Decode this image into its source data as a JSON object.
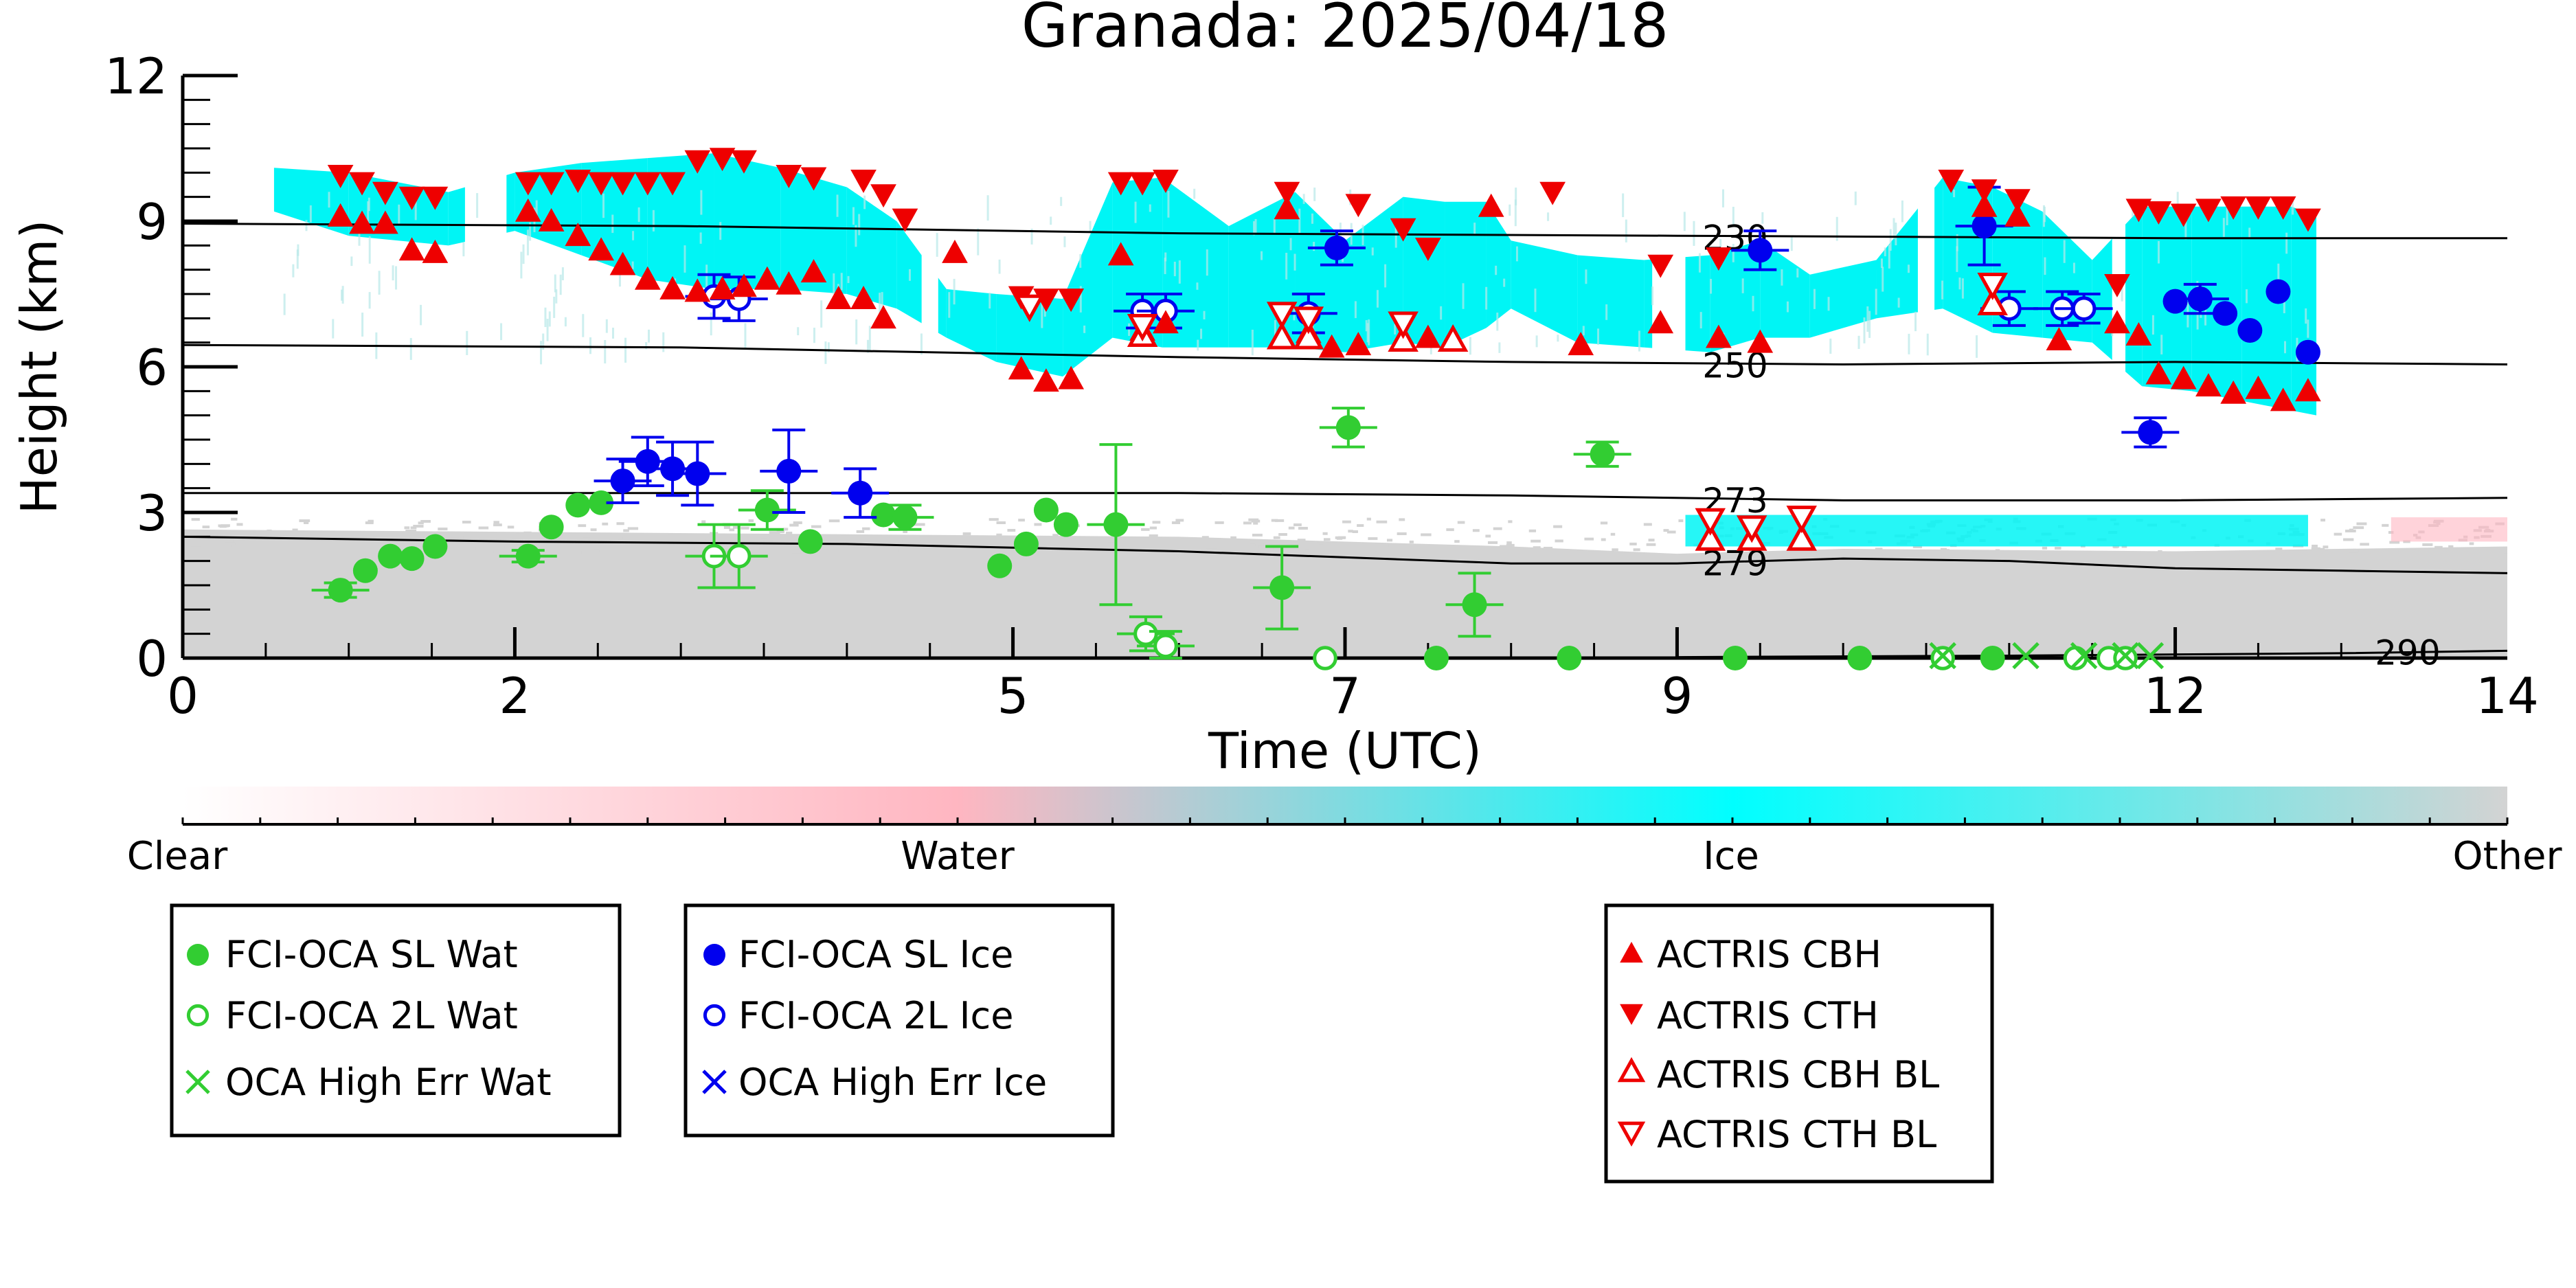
{
  "chart_data": {
    "type": "scatter",
    "title": "Granada: 2025/04/18",
    "xlabel": "Time (UTC)",
    "ylabel": "Height (km)",
    "xlim": [
      0,
      14
    ],
    "ylim": [
      0,
      12
    ],
    "xticks": [
      {
        "v": 0,
        "label": "0"
      },
      {
        "v": 2,
        "label": "2"
      },
      {
        "v": 5,
        "label": "5"
      },
      {
        "v": 7,
        "label": "7"
      },
      {
        "v": 9,
        "label": "9"
      },
      {
        "v": 12,
        "label": "12"
      },
      {
        "v": 14,
        "label": "14"
      }
    ],
    "yticks": [
      {
        "v": 0,
        "label": "0"
      },
      {
        "v": 3,
        "label": "3"
      },
      {
        "v": 6,
        "label": "6"
      },
      {
        "v": 9,
        "label": "9"
      },
      {
        "v": 12,
        "label": "12"
      }
    ],
    "colorbar": {
      "labels": [
        "Clear",
        "Water",
        "Ice",
        "Other"
      ],
      "colors": [
        "#ffffff",
        "#ffb6c1",
        "#00ffff",
        "#d3d3d3"
      ]
    },
    "colors": {
      "water": "#32cd32",
      "ice": "#0000ee",
      "actris": "#ee0000",
      "ice_mask": "#00f5f5",
      "other_mask": "#d3d3d3",
      "water_mask": "#ffb6c1"
    },
    "isotherms": [
      {
        "label": "230",
        "points": [
          [
            0,
            8.95
          ],
          [
            3,
            8.9
          ],
          [
            6,
            8.75
          ],
          [
            9,
            8.7
          ],
          [
            12,
            8.65
          ],
          [
            14,
            8.65
          ]
        ]
      },
      {
        "label": "250",
        "points": [
          [
            0,
            6.45
          ],
          [
            3,
            6.4
          ],
          [
            6,
            6.2
          ],
          [
            8,
            6.1
          ],
          [
            10,
            6.05
          ],
          [
            12,
            6.1
          ],
          [
            14,
            6.05
          ]
        ]
      },
      {
        "label": "273",
        "points": [
          [
            0,
            3.4
          ],
          [
            3,
            3.4
          ],
          [
            6,
            3.4
          ],
          [
            8,
            3.35
          ],
          [
            10,
            3.25
          ],
          [
            12,
            3.25
          ],
          [
            14,
            3.3
          ]
        ]
      },
      {
        "label": "279",
        "points": [
          [
            0,
            2.5
          ],
          [
            2,
            2.4
          ],
          [
            4,
            2.35
          ],
          [
            6,
            2.2
          ],
          [
            8,
            1.95
          ],
          [
            9,
            1.95
          ],
          [
            10,
            2.05
          ],
          [
            11,
            2.0
          ],
          [
            12,
            1.85
          ],
          [
            13,
            1.8
          ],
          [
            14,
            1.75
          ]
        ]
      },
      {
        "label": "290",
        "points": [
          [
            9,
            0.02
          ],
          [
            11,
            0.05
          ],
          [
            13,
            0.1
          ],
          [
            14,
            0.15
          ]
        ]
      }
    ],
    "series": [
      {
        "name": "FCI-OCA SL Wat",
        "marker": "filled-circle",
        "color": "water",
        "points": [
          {
            "x": 0.95,
            "y": 1.4,
            "err": 0.15
          },
          {
            "x": 1.1,
            "y": 1.8
          },
          {
            "x": 1.25,
            "y": 2.1
          },
          {
            "x": 1.38,
            "y": 2.05
          },
          {
            "x": 1.52,
            "y": 2.3
          },
          {
            "x": 2.08,
            "y": 2.1,
            "err": 0.12
          },
          {
            "x": 2.22,
            "y": 2.7
          },
          {
            "x": 2.38,
            "y": 3.15
          },
          {
            "x": 2.52,
            "y": 3.2
          },
          {
            "x": 3.52,
            "y": 3.05,
            "err": 0.4
          },
          {
            "x": 3.78,
            "y": 2.4
          },
          {
            "x": 4.22,
            "y": 2.95
          },
          {
            "x": 4.35,
            "y": 2.9,
            "err": 0.25
          },
          {
            "x": 4.92,
            "y": 1.9
          },
          {
            "x": 5.08,
            "y": 2.35
          },
          {
            "x": 5.2,
            "y": 3.05
          },
          {
            "x": 5.32,
            "y": 2.75
          },
          {
            "x": 5.62,
            "y": 2.75,
            "err": 1.65
          },
          {
            "x": 6.62,
            "y": 1.45,
            "err": 0.85
          },
          {
            "x": 7.02,
            "y": 4.75,
            "err": 0.4
          },
          {
            "x": 7.55,
            "y": 0.0
          },
          {
            "x": 7.78,
            "y": 1.1,
            "err": 0.65
          },
          {
            "x": 8.35,
            "y": 0.0
          },
          {
            "x": 8.55,
            "y": 4.2,
            "err": 0.25
          },
          {
            "x": 9.35,
            "y": 0.0
          },
          {
            "x": 10.1,
            "y": 0.0
          },
          {
            "x": 10.9,
            "y": 0.0
          }
        ]
      },
      {
        "name": "FCI-OCA 2L Wat",
        "marker": "open-circle",
        "color": "water",
        "points": [
          {
            "x": 3.2,
            "y": 2.1,
            "err": 0.65
          },
          {
            "x": 3.35,
            "y": 2.1,
            "err": 0.65
          },
          {
            "x": 5.8,
            "y": 0.5,
            "err": 0.35
          },
          {
            "x": 5.92,
            "y": 0.25,
            "err": 0.3
          },
          {
            "x": 6.88,
            "y": 0.0
          },
          {
            "x": 10.6,
            "y": 0.0
          },
          {
            "x": 11.4,
            "y": 0.0
          },
          {
            "x": 11.6,
            "y": 0.0
          },
          {
            "x": 11.7,
            "y": 0.0
          }
        ]
      },
      {
        "name": "OCA High Err Wat",
        "marker": "x",
        "color": "water",
        "points": [
          {
            "x": 10.6,
            "y": 0.05
          },
          {
            "x": 11.1,
            "y": 0.05
          },
          {
            "x": 11.45,
            "y": 0.05
          },
          {
            "x": 11.7,
            "y": 0.05
          },
          {
            "x": 11.85,
            "y": 0.05
          }
        ]
      },
      {
        "name": "FCI-OCA SL Ice",
        "marker": "filled-circle",
        "color": "ice",
        "points": [
          {
            "x": 2.65,
            "y": 3.65,
            "err": 0.45
          },
          {
            "x": 2.8,
            "y": 4.05,
            "err": 0.5
          },
          {
            "x": 2.95,
            "y": 3.9,
            "err": 0.55
          },
          {
            "x": 3.1,
            "y": 3.8,
            "err": 0.65
          },
          {
            "x": 3.65,
            "y": 3.85,
            "err": 0.85
          },
          {
            "x": 4.08,
            "y": 3.4,
            "err": 0.5
          },
          {
            "x": 6.95,
            "y": 8.45,
            "err": 0.35
          },
          {
            "x": 9.5,
            "y": 8.4,
            "err": 0.4
          },
          {
            "x": 10.85,
            "y": 8.9,
            "err": 0.8
          },
          {
            "x": 11.85,
            "y": 4.65,
            "err": 0.3
          },
          {
            "x": 12.0,
            "y": 7.35
          },
          {
            "x": 12.15,
            "y": 7.4,
            "err": 0.3
          },
          {
            "x": 12.3,
            "y": 7.1
          },
          {
            "x": 12.45,
            "y": 6.75
          },
          {
            "x": 12.62,
            "y": 7.55
          },
          {
            "x": 12.8,
            "y": 6.3
          }
        ]
      },
      {
        "name": "FCI-OCA 2L Ice",
        "marker": "open-circle",
        "color": "ice",
        "points": [
          {
            "x": 3.2,
            "y": 7.45,
            "err": 0.45
          },
          {
            "x": 3.35,
            "y": 7.4,
            "err": 0.45
          },
          {
            "x": 5.78,
            "y": 7.15,
            "err": 0.35
          },
          {
            "x": 5.92,
            "y": 7.15,
            "err": 0.35
          },
          {
            "x": 6.78,
            "y": 7.1,
            "err": 0.4
          },
          {
            "x": 11.0,
            "y": 7.2,
            "err": 0.35
          },
          {
            "x": 11.32,
            "y": 7.2,
            "err": 0.35
          },
          {
            "x": 11.45,
            "y": 7.2,
            "err": 0.3
          }
        ]
      },
      {
        "name": "OCA High Err Ice",
        "marker": "x",
        "color": "ice",
        "points": []
      },
      {
        "name": "ACTRIS CBH",
        "marker": "filled-triangle-up",
        "color": "actris",
        "points": [
          {
            "x": 0.95,
            "y": 9.1
          },
          {
            "x": 1.08,
            "y": 8.95
          },
          {
            "x": 1.22,
            "y": 8.95
          },
          {
            "x": 1.38,
            "y": 8.4
          },
          {
            "x": 1.52,
            "y": 8.35
          },
          {
            "x": 2.08,
            "y": 9.2
          },
          {
            "x": 2.22,
            "y": 9.0
          },
          {
            "x": 2.38,
            "y": 8.7
          },
          {
            "x": 2.52,
            "y": 8.4
          },
          {
            "x": 2.65,
            "y": 8.1
          },
          {
            "x": 2.8,
            "y": 7.8
          },
          {
            "x": 2.95,
            "y": 7.6
          },
          {
            "x": 3.1,
            "y": 7.55
          },
          {
            "x": 3.25,
            "y": 7.6
          },
          {
            "x": 3.38,
            "y": 7.65
          },
          {
            "x": 3.52,
            "y": 7.8
          },
          {
            "x": 3.65,
            "y": 7.7
          },
          {
            "x": 3.8,
            "y": 7.95
          },
          {
            "x": 3.95,
            "y": 7.4
          },
          {
            "x": 4.1,
            "y": 7.4
          },
          {
            "x": 4.22,
            "y": 7.0
          },
          {
            "x": 4.65,
            "y": 8.35
          },
          {
            "x": 5.05,
            "y": 5.95
          },
          {
            "x": 5.2,
            "y": 5.7
          },
          {
            "x": 5.35,
            "y": 5.75
          },
          {
            "x": 5.65,
            "y": 8.3
          },
          {
            "x": 5.78,
            "y": 6.75
          },
          {
            "x": 5.92,
            "y": 6.9
          },
          {
            "x": 6.65,
            "y": 9.25
          },
          {
            "x": 6.78,
            "y": 6.7
          },
          {
            "x": 6.92,
            "y": 6.4
          },
          {
            "x": 7.08,
            "y": 6.45
          },
          {
            "x": 7.35,
            "y": 6.6
          },
          {
            "x": 7.5,
            "y": 6.6
          },
          {
            "x": 7.88,
            "y": 9.3
          },
          {
            "x": 8.42,
            "y": 6.45
          },
          {
            "x": 8.9,
            "y": 6.9
          },
          {
            "x": 9.25,
            "y": 6.6
          },
          {
            "x": 9.5,
            "y": 6.5
          },
          {
            "x": 10.85,
            "y": 9.3
          },
          {
            "x": 11.05,
            "y": 9.1
          },
          {
            "x": 11.3,
            "y": 6.55
          },
          {
            "x": 11.65,
            "y": 6.9
          },
          {
            "x": 11.78,
            "y": 6.65
          },
          {
            "x": 11.9,
            "y": 5.85
          },
          {
            "x": 12.05,
            "y": 5.75
          },
          {
            "x": 12.2,
            "y": 5.6
          },
          {
            "x": 12.35,
            "y": 5.45
          },
          {
            "x": 12.5,
            "y": 5.55
          },
          {
            "x": 12.65,
            "y": 5.3
          },
          {
            "x": 12.8,
            "y": 5.5
          }
        ]
      },
      {
        "name": "ACTRIS CTH",
        "marker": "filled-triangle-down",
        "color": "actris",
        "points": [
          {
            "x": 0.95,
            "y": 9.95
          },
          {
            "x": 1.08,
            "y": 9.8
          },
          {
            "x": 1.22,
            "y": 9.6
          },
          {
            "x": 1.38,
            "y": 9.5
          },
          {
            "x": 1.52,
            "y": 9.5
          },
          {
            "x": 2.08,
            "y": 9.8
          },
          {
            "x": 2.22,
            "y": 9.8
          },
          {
            "x": 2.38,
            "y": 9.85
          },
          {
            "x": 2.52,
            "y": 9.8
          },
          {
            "x": 2.65,
            "y": 9.8
          },
          {
            "x": 2.8,
            "y": 9.8
          },
          {
            "x": 2.95,
            "y": 9.8
          },
          {
            "x": 3.1,
            "y": 10.25
          },
          {
            "x": 3.25,
            "y": 10.3
          },
          {
            "x": 3.38,
            "y": 10.25
          },
          {
            "x": 3.65,
            "y": 9.95
          },
          {
            "x": 3.8,
            "y": 9.9
          },
          {
            "x": 4.1,
            "y": 9.85
          },
          {
            "x": 4.22,
            "y": 9.55
          },
          {
            "x": 4.35,
            "y": 9.05
          },
          {
            "x": 5.05,
            "y": 7.45
          },
          {
            "x": 5.2,
            "y": 7.4
          },
          {
            "x": 5.35,
            "y": 7.4
          },
          {
            "x": 5.65,
            "y": 9.8
          },
          {
            "x": 5.78,
            "y": 9.8
          },
          {
            "x": 5.92,
            "y": 9.85
          },
          {
            "x": 6.65,
            "y": 9.6
          },
          {
            "x": 7.08,
            "y": 9.35
          },
          {
            "x": 7.35,
            "y": 8.85
          },
          {
            "x": 7.5,
            "y": 8.45
          },
          {
            "x": 8.25,
            "y": 9.6
          },
          {
            "x": 8.9,
            "y": 8.1
          },
          {
            "x": 9.25,
            "y": 8.25
          },
          {
            "x": 10.65,
            "y": 9.85
          },
          {
            "x": 10.85,
            "y": 9.65
          },
          {
            "x": 11.05,
            "y": 9.45
          },
          {
            "x": 11.65,
            "y": 7.7
          },
          {
            "x": 11.78,
            "y": 9.25
          },
          {
            "x": 11.9,
            "y": 9.2
          },
          {
            "x": 12.05,
            "y": 9.15
          },
          {
            "x": 12.2,
            "y": 9.25
          },
          {
            "x": 12.35,
            "y": 9.3
          },
          {
            "x": 12.5,
            "y": 9.3
          },
          {
            "x": 12.65,
            "y": 9.3
          },
          {
            "x": 12.8,
            "y": 9.05
          }
        ]
      },
      {
        "name": "ACTRIS CBH BL",
        "marker": "open-triangle-up",
        "color": "actris",
        "points": [
          {
            "x": 5.78,
            "y": 6.65
          },
          {
            "x": 6.62,
            "y": 6.6
          },
          {
            "x": 6.78,
            "y": 6.6
          },
          {
            "x": 7.35,
            "y": 6.55
          },
          {
            "x": 7.65,
            "y": 6.55
          },
          {
            "x": 9.2,
            "y": 2.45
          },
          {
            "x": 9.45,
            "y": 2.45
          },
          {
            "x": 9.75,
            "y": 2.45
          },
          {
            "x": 10.9,
            "y": 7.3
          }
        ]
      },
      {
        "name": "ACTRIS CTH BL",
        "marker": "open-triangle-down",
        "color": "actris",
        "points": [
          {
            "x": 5.1,
            "y": 7.25
          },
          {
            "x": 5.78,
            "y": 6.85
          },
          {
            "x": 6.62,
            "y": 7.1
          },
          {
            "x": 6.78,
            "y": 7.0
          },
          {
            "x": 7.35,
            "y": 6.9
          },
          {
            "x": 9.2,
            "y": 2.85
          },
          {
            "x": 9.45,
            "y": 2.7
          },
          {
            "x": 9.75,
            "y": 2.9
          },
          {
            "x": 10.9,
            "y": 7.7
          }
        ]
      }
    ]
  }
}
